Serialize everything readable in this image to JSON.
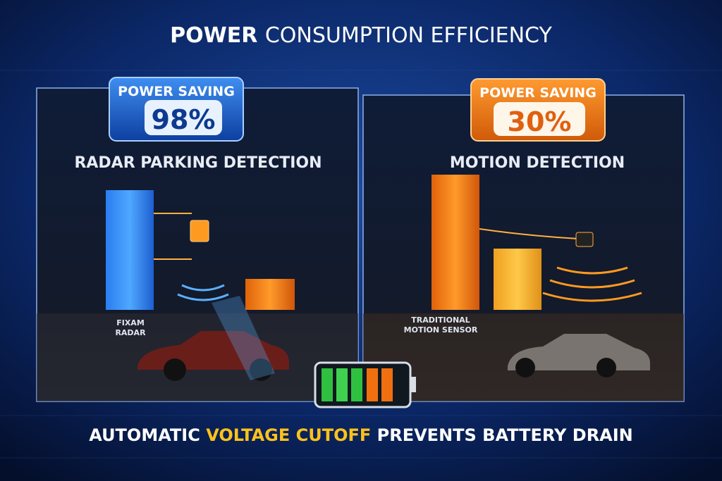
{
  "header": {
    "title_strong": "POWER",
    "title_rest": "CONSUMPTION EFFICIENCY"
  },
  "panels": [
    {
      "badge_label": "POWER SAVING",
      "badge_value": "98%",
      "heading": "RADAR PARKING DETECTION",
      "device_label": [
        "FIXAM",
        "RADAR"
      ]
    },
    {
      "badge_label": "POWER SAVING",
      "badge_value": "30%",
      "heading": "MOTION DETECTION",
      "device_label": [
        "TRADITIONAL",
        "MOTION SENSOR"
      ]
    }
  ],
  "footer": {
    "part1": "AUTOMATIC",
    "highlight": "VOLTAGE CUTOFF",
    "part2": "PREVENTS BATTERY DRAIN"
  }
}
